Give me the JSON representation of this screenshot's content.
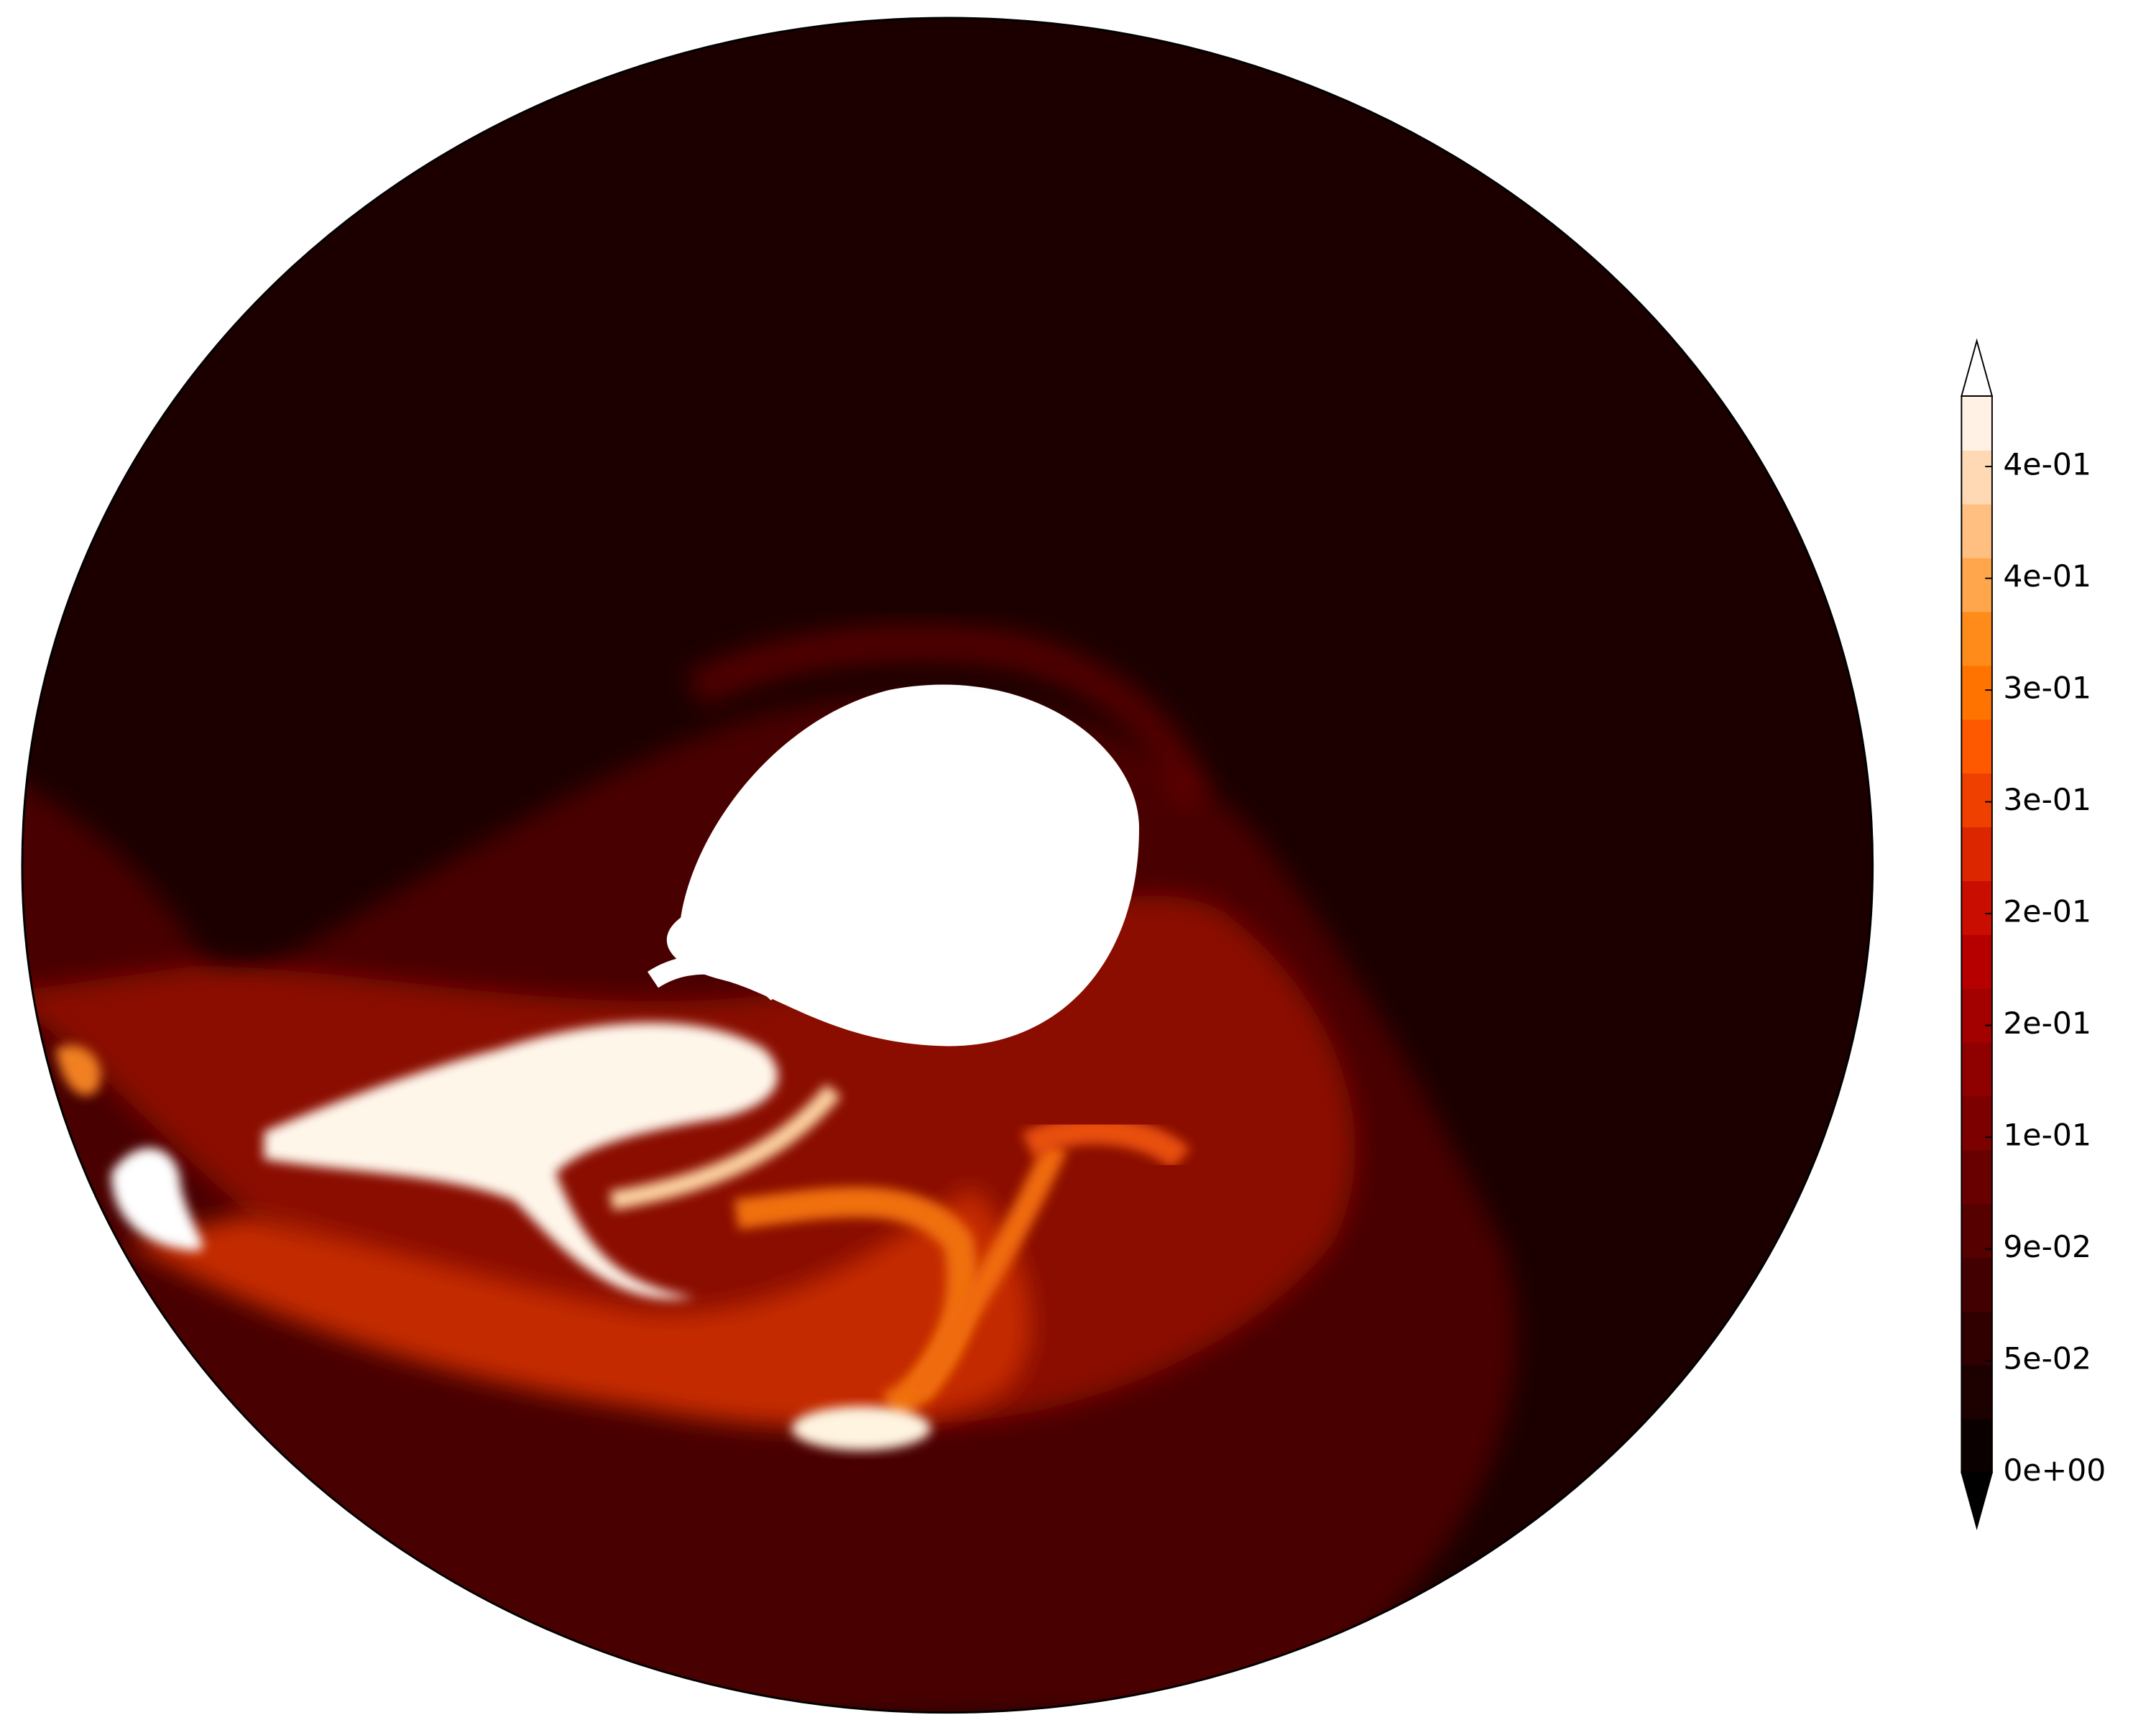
{
  "chart_data": {
    "type": "contourf",
    "colormap": "gist_heat",
    "clim": [
      0,
      0.443
    ],
    "extend": "both",
    "colorbar_ticks": [
      {
        "value": 0,
        "label": "0e+00"
      },
      {
        "value": 0.046,
        "label": "5e-02"
      },
      {
        "value": 0.092,
        "label": "9e-02"
      },
      {
        "value": 0.138,
        "label": "1e-01"
      },
      {
        "value": 0.184,
        "label": "2e-01"
      },
      {
        "value": 0.23,
        "label": "2e-01"
      },
      {
        "value": 0.276,
        "label": "3e-01"
      },
      {
        "value": 0.322,
        "label": "3e-01"
      },
      {
        "value": 0.368,
        "label": "4e-01"
      },
      {
        "value": 0.414,
        "label": "4e-01"
      }
    ]
  }
}
